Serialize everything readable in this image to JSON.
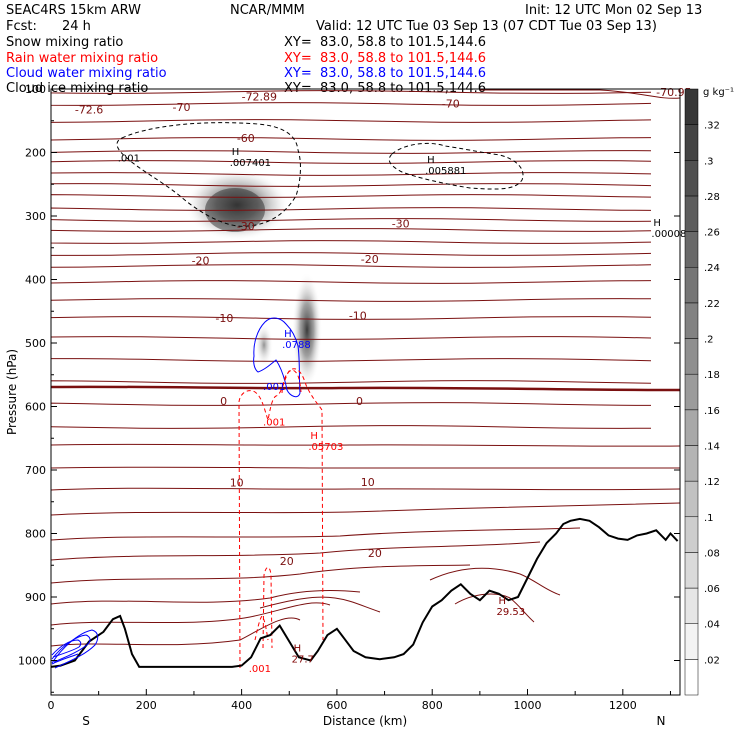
{
  "header": {
    "model": "SEAC4RS 15km ARW",
    "center": "NCAR/MMM",
    "init": "Init: 12 UTC Mon 02 Sep 13",
    "fcst_label": "Fcst:",
    "fcst_value": "24 h",
    "valid": "Valid: 12 UTC Tue 03 Sep 13 (07 CDT Tue 03 Sep 13)",
    "fields": [
      {
        "name": "Snow mixing ratio",
        "xy": "XY=  83.0, 58.8 to 101.5,144.6",
        "color": "#000000"
      },
      {
        "name": "Rain water mixing ratio",
        "xy": "XY=  83.0, 58.8 to 101.5,144.6",
        "color": "#ff0000"
      },
      {
        "name": "Cloud water mixing ratio",
        "xy": "XY=  83.0, 58.8 to 101.5,144.6",
        "color": "#0000ff"
      },
      {
        "name": "Cloud ice mixing ratio",
        "xy": "XY=  83.0, 58.8 to 101.5,144.6",
        "color": "#000000"
      }
    ]
  },
  "chart_data": {
    "type": "contour-cross-section",
    "xlabel": "Distance (km)",
    "ylabel": "Pressure (hPa)",
    "xlim": [
      0,
      1320
    ],
    "ylim": [
      1050,
      100
    ],
    "x_ticks": [
      0,
      200,
      400,
      600,
      800,
      1000,
      1200
    ],
    "y_ticks": [
      200,
      300,
      400,
      500,
      600,
      700,
      800,
      900,
      1000
    ],
    "y_tick_labels": [
      "200",
      "300",
      "400",
      "500",
      "600",
      "700",
      "800",
      "900",
      "1000"
    ],
    "x_tick_labels": [
      "0",
      "200",
      "400",
      "600",
      "800",
      "1000",
      "1200"
    ],
    "y_top_label": "100",
    "endpoints": {
      "left": "S",
      "right": "N"
    },
    "temperature_labels": [
      {
        "text": "-72.6",
        "x": 50,
        "p": 132
      },
      {
        "text": "-70",
        "x": 255,
        "p": 128
      },
      {
        "text": "-72.89",
        "x": 400,
        "p": 112
      },
      {
        "text": "-70",
        "x": 820,
        "p": 123
      },
      {
        "text": "-70.95",
        "x": 1270,
        "p": 105
      },
      {
        "text": "-60",
        "x": 390,
        "p": 177
      },
      {
        "text": "-30",
        "x": 390,
        "p": 316
      },
      {
        "text": "-30",
        "x": 715,
        "p": 312
      },
      {
        "text": "-20",
        "x": 295,
        "p": 370
      },
      {
        "text": "-20",
        "x": 650,
        "p": 368
      },
      {
        "text": "-10",
        "x": 345,
        "p": 461
      },
      {
        "text": "-10",
        "x": 625,
        "p": 457
      },
      {
        "text": "0",
        "x": 355,
        "p": 591
      },
      {
        "text": "0",
        "x": 640,
        "p": 591
      },
      {
        "text": "10",
        "x": 375,
        "p": 720
      },
      {
        "text": "10",
        "x": 650,
        "p": 719
      },
      {
        "text": "20",
        "x": 480,
        "p": 843
      },
      {
        "text": "20",
        "x": 665,
        "p": 831
      }
    ],
    "extrema_labels": [
      {
        "marker": "H",
        "value": ".007401",
        "x": 375,
        "p": 218,
        "color": "#000000"
      },
      {
        "marker": "H",
        "value": ".005881",
        "x": 785,
        "p": 231,
        "color": "#000000"
      },
      {
        "marker": "H",
        "value": ".00008",
        "x": 1260,
        "p": 330,
        "color": "#000000"
      },
      {
        "marker": "H",
        "value": ".0788",
        "x": 485,
        "p": 505,
        "color": "#0000ff"
      },
      {
        "marker": "H",
        "value": ".05703",
        "x": 540,
        "p": 665,
        "color": "#ff0000"
      },
      {
        "marker": "H",
        "value": "27.7",
        "x": 505,
        "p": 1000,
        "color": "#7f0000"
      },
      {
        "marker": "H",
        "value": "29.53",
        "x": 935,
        "p": 925,
        "color": "#7f0000"
      }
    ],
    "contour_labels": [
      {
        "text": ".001",
        "x": 140,
        "p": 208,
        "color": "#000000"
      },
      {
        "text": ".001",
        "x": 445,
        "p": 568,
        "color": "#0000ff"
      },
      {
        "text": ".001",
        "x": 445,
        "p": 624,
        "color": "#ff0000"
      },
      {
        "text": ".001",
        "x": 415,
        "p": 1012,
        "color": "#ff0000"
      }
    ],
    "colorbar": {
      "units": "g kg⁻¹",
      "min": 0,
      "max": 0.34,
      "ticks": [
        ".02",
        ".04",
        ".06",
        ".08",
        ".1",
        ".12",
        ".14",
        ".16",
        ".18",
        ".2",
        ".22",
        ".24",
        ".26",
        ".28",
        ".3",
        ".32"
      ]
    }
  }
}
